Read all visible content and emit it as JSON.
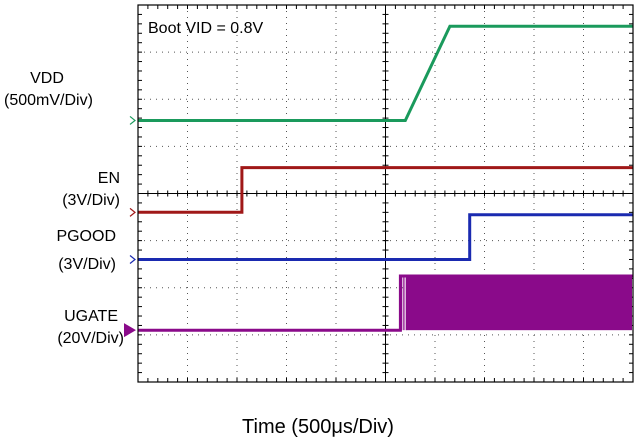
{
  "chart_data": {
    "type": "line",
    "title": "",
    "annotation": "Boot VID = 0.8V",
    "xlabel": "Time (500μs/Div)",
    "x_divisions": 10,
    "y_divisions": 8,
    "grid": true,
    "series": [
      {
        "name": "VDD",
        "scale": "(500mV/Div)",
        "color": "#1a9a5c",
        "points": [
          [
            0,
            5.55
          ],
          [
            5.4,
            5.55
          ],
          [
            6.3,
            7.55
          ],
          [
            10,
            7.55
          ]
        ]
      },
      {
        "name": "EN",
        "scale": "(3V/Div)",
        "color": "#a01818",
        "points": [
          [
            0,
            3.6
          ],
          [
            2.1,
            3.6
          ],
          [
            2.1,
            4.55
          ],
          [
            10,
            4.55
          ]
        ]
      },
      {
        "name": "PGOOD",
        "scale": "(3V/Div)",
        "color": "#1a2ab0",
        "points": [
          [
            0,
            2.6
          ],
          [
            6.7,
            2.6
          ],
          [
            6.7,
            3.55
          ],
          [
            10,
            3.55
          ]
        ]
      },
      {
        "name": "UGATE",
        "scale": "(20V/Div)",
        "color": "#8a0a8a",
        "points": [
          [
            0,
            1.1
          ],
          [
            5.3,
            1.1
          ],
          [
            5.3,
            2.25
          ],
          [
            10,
            2.25
          ]
        ],
        "switching_start": 5.3
      }
    ]
  }
}
